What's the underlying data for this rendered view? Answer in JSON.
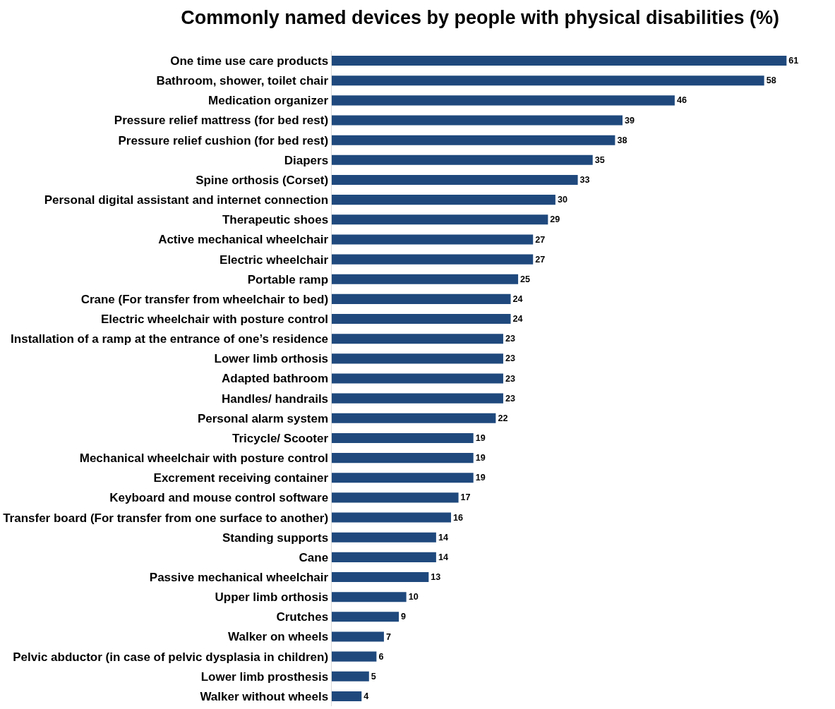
{
  "chart_data": {
    "type": "bar",
    "orientation": "horizontal",
    "title": "Commonly named devices by people with physical disabilities (%)",
    "categories": [
      "One time use care products",
      "Bathroom, shower, toilet chair",
      "Medication organizer",
      "Pressure relief mattress (for bed rest)",
      "Pressure relief cushion (for bed rest)",
      "Diapers",
      "Spine orthosis (Corset)",
      "Personal digital assistant and internet connection",
      "Therapeutic shoes",
      "Active mechanical wheelchair",
      "Electric wheelchair",
      "Portable ramp",
      "Crane (For transfer from wheelchair to bed)",
      "Electric wheelchair with posture control",
      "Installation of a ramp at the entrance of one’s residence",
      "Lower limb orthosis",
      "Adapted bathroom",
      "Handles/ handrails",
      "Personal alarm system",
      "Tricycle/ Scooter",
      "Mechanical wheelchair with posture control",
      "Excrement receiving container",
      "Keyboard and mouse control software",
      "Transfer board (For transfer from one surface to another)",
      "Standing supports",
      "Cane",
      "Passive mechanical wheelchair",
      "Upper limb orthosis",
      "Crutches",
      "Walker on wheels",
      "Pelvic abductor (in case of pelvic dysplasia in children)",
      "Lower limb prosthesis",
      "Walker without wheels"
    ],
    "values": [
      61,
      58,
      46,
      39,
      38,
      35,
      33,
      30,
      29,
      27,
      27,
      25,
      24,
      24,
      23,
      23,
      23,
      23,
      22,
      19,
      19,
      19,
      17,
      16,
      14,
      14,
      13,
      10,
      9,
      7,
      6,
      5,
      4
    ],
    "color": "#1f497d",
    "data_labels": true,
    "tick_labels": "y"
  }
}
